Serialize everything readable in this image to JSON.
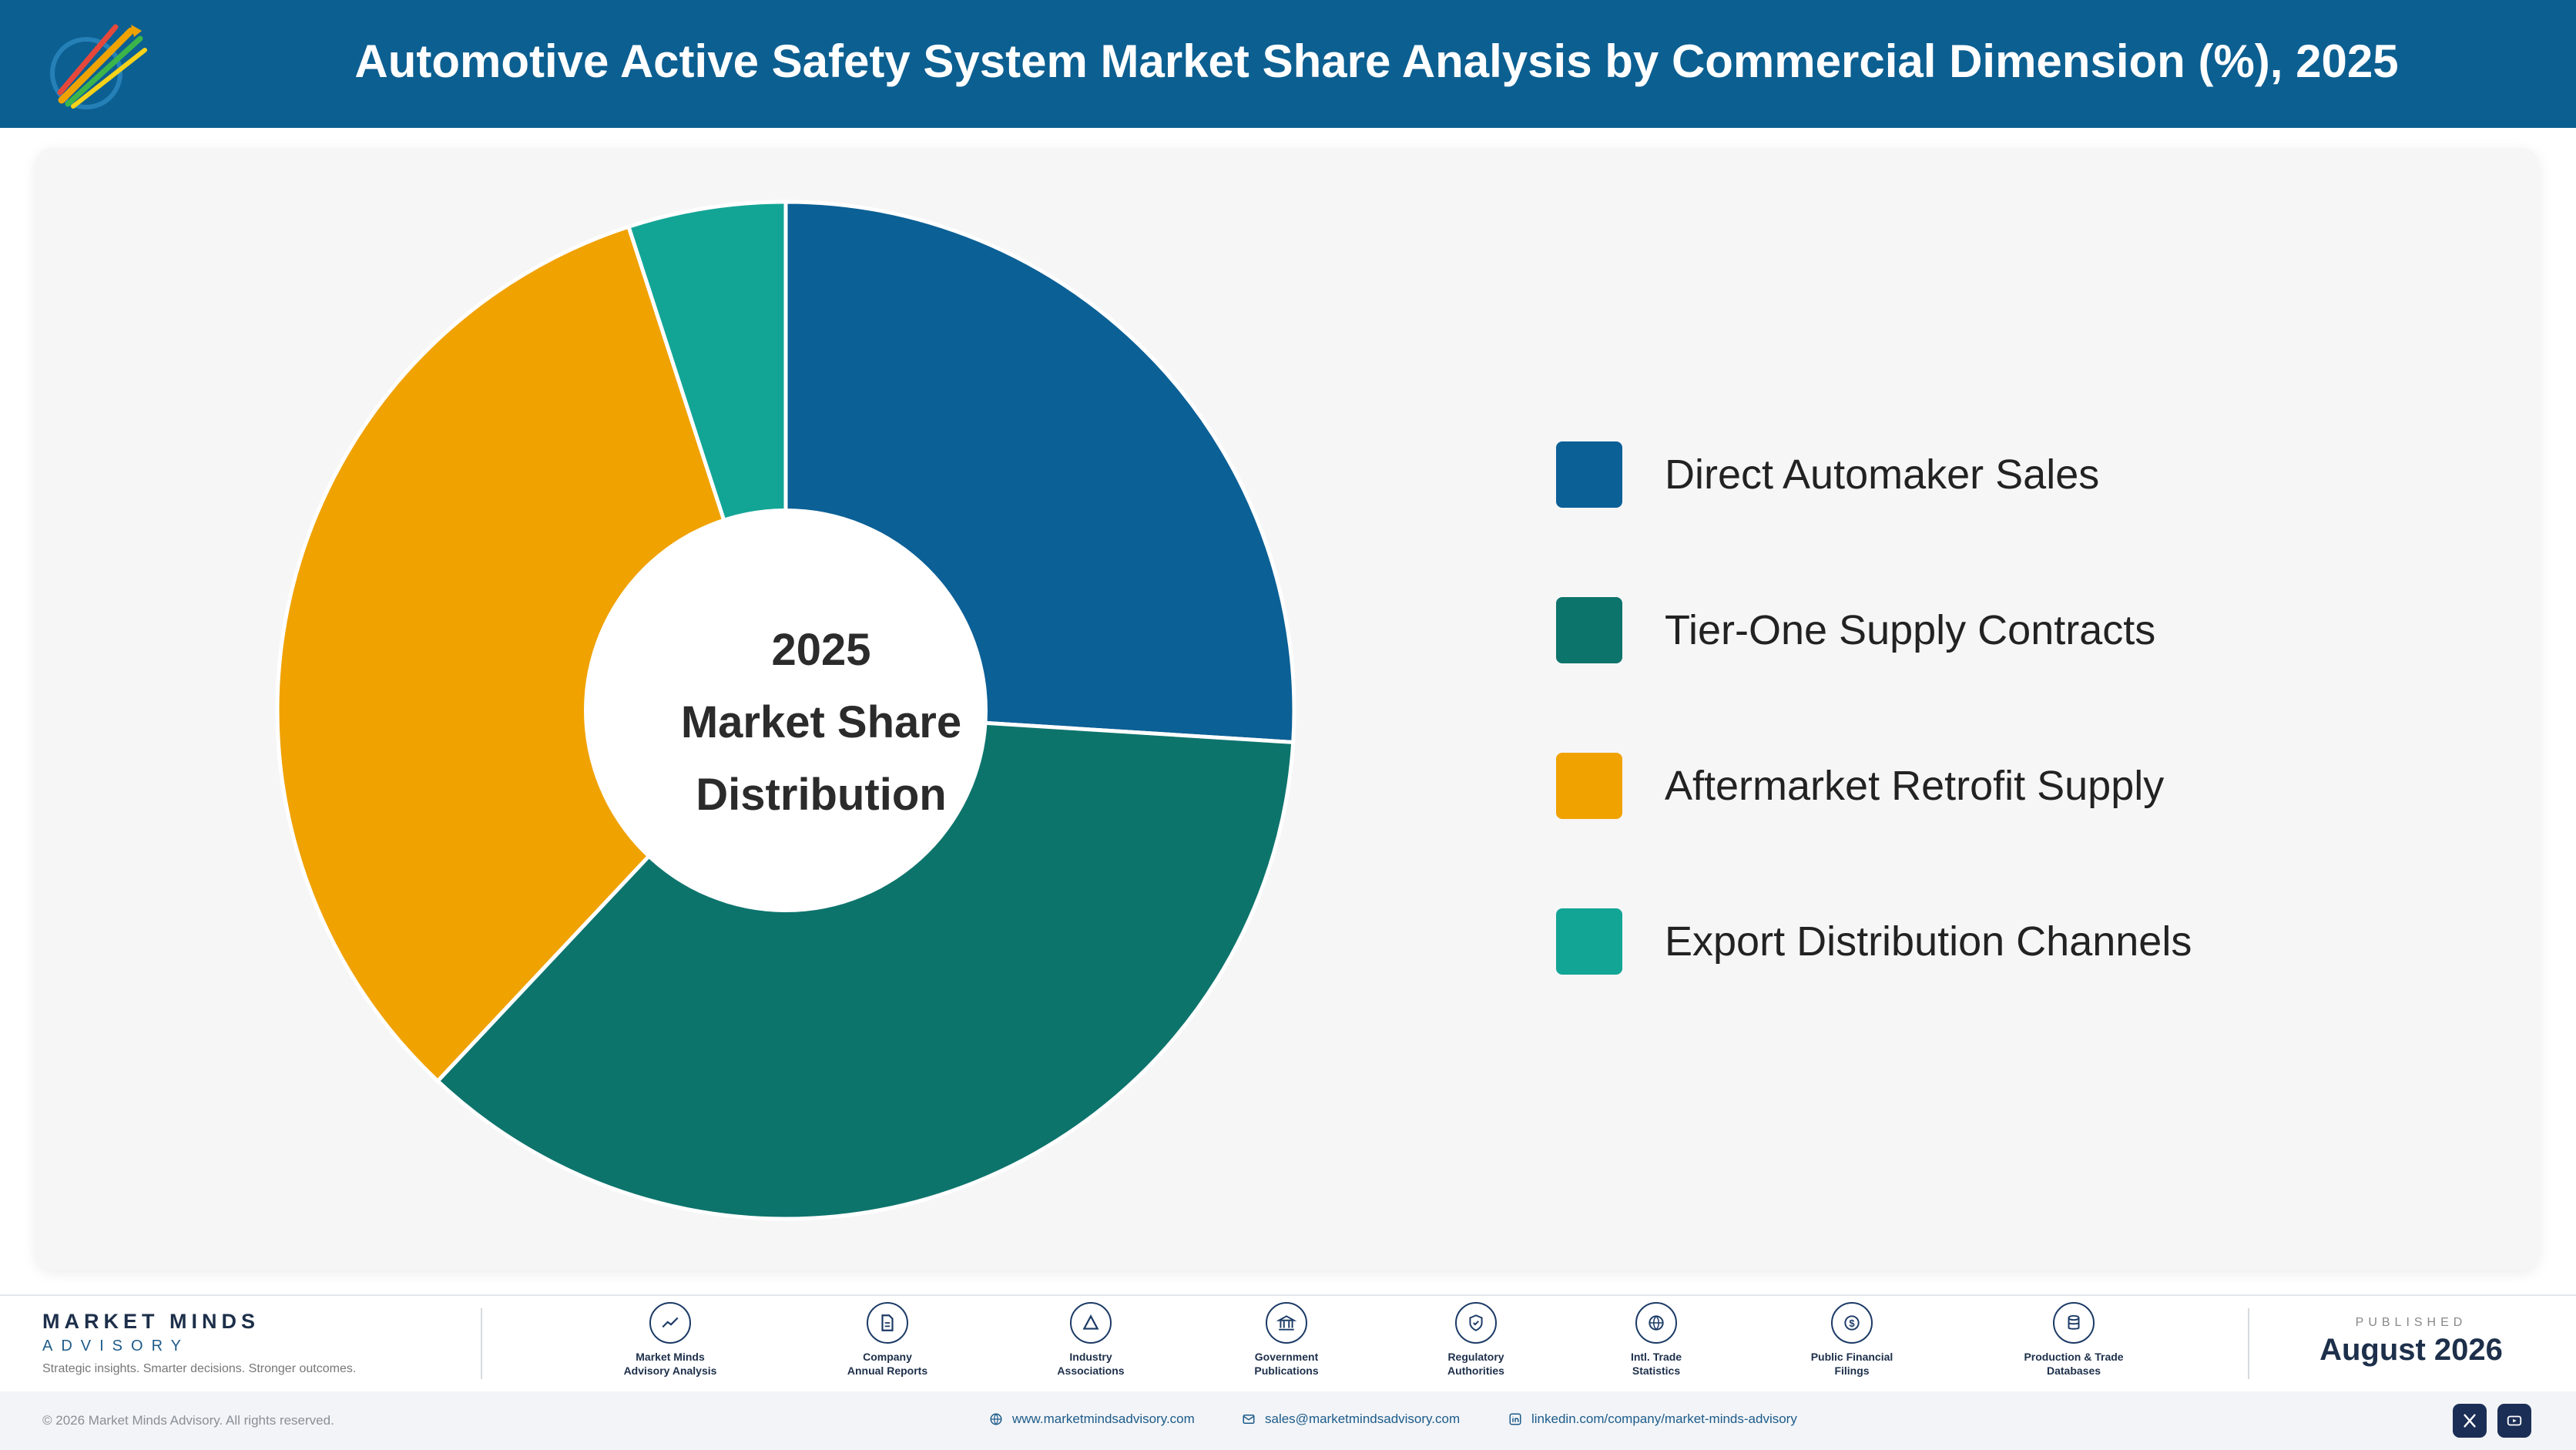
{
  "header": {
    "title": "Automotive Active Safety System Market Share Analysis by Commercial Dimension (%), 2025",
    "logo_icon": "market-minds-logo-icon",
    "background": "#0c5f91"
  },
  "chart_data": {
    "type": "pie",
    "donut": true,
    "center_label": [
      "2025",
      "Market Share",
      "Distribution"
    ],
    "categories": [
      "Direct Automaker Sales",
      "Tier-One Supply Contracts",
      "Aftermarket Retrofit Supply",
      "Export Distribution Channels"
    ],
    "values": [
      26,
      36,
      33,
      5
    ],
    "colors": [
      "#0b6096",
      "#0d746c",
      "#f0a200",
      "#12a596"
    ],
    "legend_position": "right",
    "start_angle_deg": 0,
    "direction": "clockwise"
  },
  "footer": {
    "brand_name": "MARKET MINDS",
    "brand_sub": "ADVISORY",
    "tagline": "Strategic insights. Smarter decisions. Stronger outcomes.",
    "sources": [
      {
        "label": "Market Minds\nAdvisory Analysis",
        "icon": "trend-chart-icon"
      },
      {
        "label": "Company\nAnnual Reports",
        "icon": "document-icon"
      },
      {
        "label": "Industry\nAssociations",
        "icon": "network-icon"
      },
      {
        "label": "Government\nPublications",
        "icon": "government-building-icon"
      },
      {
        "label": "Regulatory\nAuthorities",
        "icon": "shield-check-icon"
      },
      {
        "label": "Intl. Trade\nStatistics",
        "icon": "globe-icon"
      },
      {
        "label": "Public Financial\nFilings",
        "icon": "dollar-coin-icon"
      },
      {
        "label": "Production & Trade\nDatabases",
        "icon": "database-icon"
      }
    ],
    "published_label": "PUBLISHED",
    "published_date": "August 2026",
    "copyright": "© 2026 Market Minds Advisory. All rights reserved.",
    "website": "www.marketmindsadvisory.com",
    "email": "sales@marketmindsadvisory.com",
    "linkedin": "linkedin.com/company/market-minds-advisory"
  }
}
